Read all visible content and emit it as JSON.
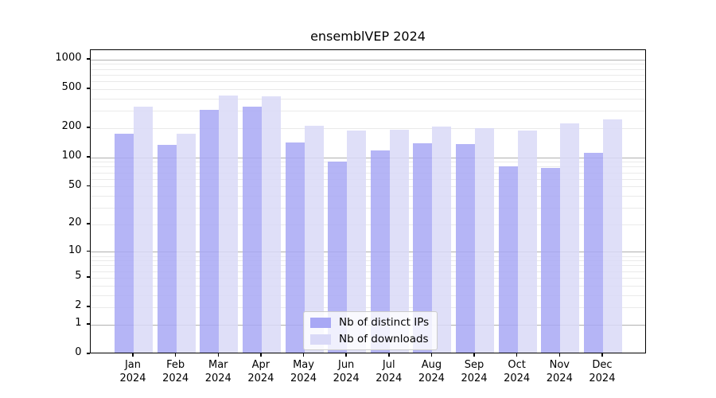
{
  "title": "ensemblVEP 2024",
  "legend": {
    "items": [
      {
        "label": "Nb of distinct IPs",
        "color": "#a8a8f5"
      },
      {
        "label": "Nb of downloads",
        "color": "#d9d9f7"
      }
    ]
  },
  "colors": {
    "bar_distinct_ips": "#a8a8f5",
    "bar_downloads": "#d9d9f7",
    "major_gridline": "#b0b0b0",
    "minor_gridline": "#eaeaea",
    "axis": "#000000"
  },
  "chart_data": {
    "type": "bar",
    "title": "ensemblVEP 2024",
    "categories": [
      "Jan 2024",
      "Feb 2024",
      "Mar 2024",
      "Apr 2024",
      "May 2024",
      "Jun 2024",
      "Jul 2024",
      "Aug 2024",
      "Sep 2024",
      "Oct 2024",
      "Nov 2024",
      "Dec 2024"
    ],
    "months": [
      "Jan",
      "Feb",
      "Mar",
      "Apr",
      "May",
      "Jun",
      "Jul",
      "Aug",
      "Sep",
      "Oct",
      "Nov",
      "Dec"
    ],
    "year": "2024",
    "series": [
      {
        "name": "Nb of distinct IPs",
        "color": "#a8a8f5",
        "values": [
          172,
          133,
          305,
          327,
          140,
          90,
          117,
          137,
          135,
          80,
          77,
          111
        ]
      },
      {
        "name": "Nb of downloads",
        "color": "#d9d9f7",
        "values": [
          325,
          174,
          426,
          420,
          210,
          187,
          191,
          206,
          198,
          187,
          220,
          243
        ]
      }
    ],
    "xlabel": "",
    "ylabel": "",
    "yscale": "log1p",
    "yticks": [
      0,
      1,
      2,
      5,
      10,
      20,
      50,
      100,
      200,
      500,
      1000
    ],
    "major_grid_values": [
      1,
      10,
      100,
      1000
    ],
    "ylim": [
      0,
      1250
    ],
    "grid": true,
    "legend_position": "lower center"
  }
}
